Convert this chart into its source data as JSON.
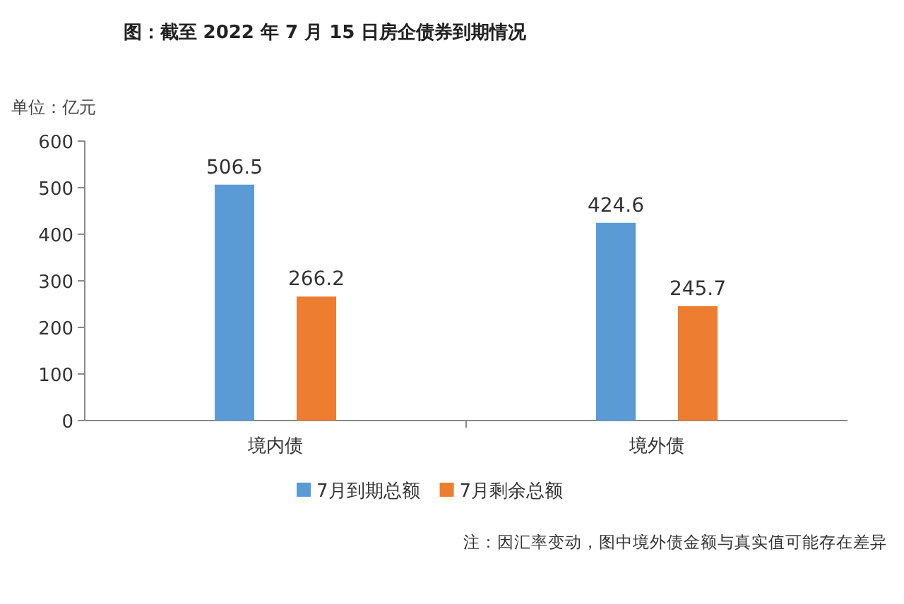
{
  "chart_data": {
    "type": "bar",
    "title": "图：截至 2022 年 7 月 15 日房企债券到期情况",
    "ylabel": "单位：亿元",
    "categories": [
      "境内债",
      "境外债"
    ],
    "series": [
      {
        "name": "7月到期总额",
        "color": "#5b9bd5",
        "values": [
          506.5,
          424.6
        ]
      },
      {
        "name": "7月剩余总额",
        "color": "#ed7d31",
        "values": [
          266.2,
          245.7
        ]
      }
    ],
    "ylim": [
      0,
      600
    ],
    "yticks": [
      0,
      100,
      200,
      300,
      400,
      500,
      600
    ],
    "data_labels": true,
    "legend": "bottom",
    "annotations": [
      "注：因汇率变动，图中境外债金额与真实值可能存在差异"
    ]
  }
}
